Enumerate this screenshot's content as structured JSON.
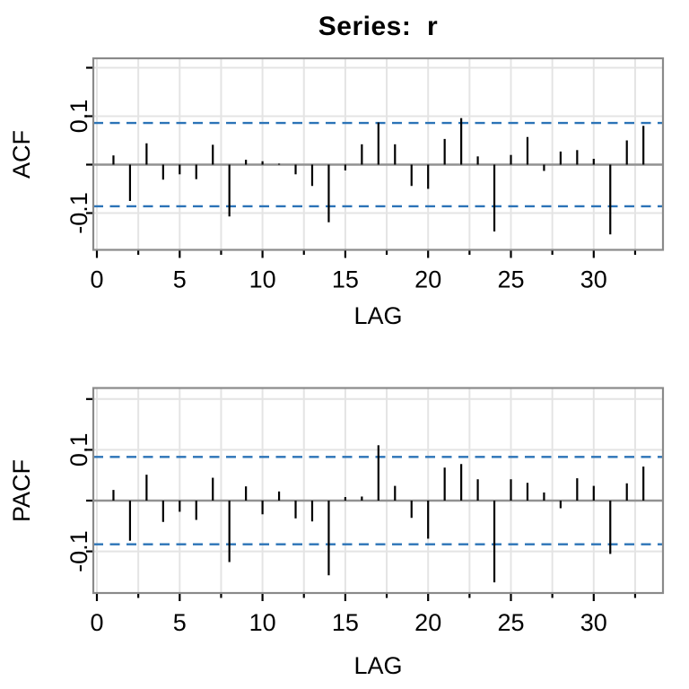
{
  "chart_data": {
    "type": "bar",
    "subtype": "acf-pacf-stem-plot",
    "title": "Series:  r",
    "series_name": "r",
    "xlabel": "LAG",
    "lag_start": 1,
    "lags": [
      1,
      2,
      3,
      4,
      5,
      6,
      7,
      8,
      9,
      10,
      11,
      12,
      13,
      14,
      15,
      16,
      17,
      18,
      19,
      20,
      21,
      22,
      23,
      24,
      25,
      26,
      27,
      28,
      29,
      30,
      31,
      32,
      33
    ],
    "series": [
      {
        "name": "ACF",
        "values": [
          0.019,
          -0.075,
          0.044,
          -0.031,
          -0.02,
          -0.03,
          0.041,
          -0.107,
          0.01,
          0.007,
          0.002,
          -0.02,
          -0.044,
          -0.119,
          -0.012,
          0.042,
          0.087,
          0.042,
          -0.044,
          -0.05,
          0.053,
          0.096,
          0.017,
          -0.138,
          0.02,
          0.057,
          -0.013,
          0.027,
          0.03,
          0.012,
          -0.144,
          0.05,
          0.08
        ]
      },
      {
        "name": "PACF",
        "values": [
          0.021,
          -0.079,
          0.051,
          -0.042,
          -0.022,
          -0.038,
          0.045,
          -0.121,
          0.028,
          -0.027,
          0.018,
          -0.035,
          -0.041,
          -0.147,
          0.007,
          0.008,
          0.109,
          0.029,
          -0.034,
          -0.075,
          0.065,
          0.072,
          0.042,
          -0.161,
          0.042,
          0.035,
          0.016,
          -0.015,
          0.044,
          0.029,
          -0.105,
          0.034,
          0.067
        ]
      }
    ],
    "confidence_band": 0.086,
    "confidence_band_style": "dashed",
    "x_ticks_labeled": [
      0,
      5,
      10,
      15,
      20,
      25,
      30
    ],
    "x_ticks_minor_step": 2.5,
    "y_ticks_labeled": [
      {
        "label": "0.1",
        "value": 0.1
      },
      {
        "label": "-0.1",
        "value": -0.1
      }
    ],
    "y_ticks_all": [
      0.2,
      0.1,
      0,
      -0.1
    ],
    "xlim": [
      -0.2,
      34.2
    ],
    "ylim": [
      -0.18,
      0.22
    ],
    "grid": true,
    "colors": {
      "bar": "#000000",
      "confidence_band": "#2b73b7",
      "grid": "#e4e4e4",
      "zero_line": "#919191",
      "panel_border": "#8a8a8a",
      "text": "#000000",
      "background": "#ffffff"
    }
  }
}
